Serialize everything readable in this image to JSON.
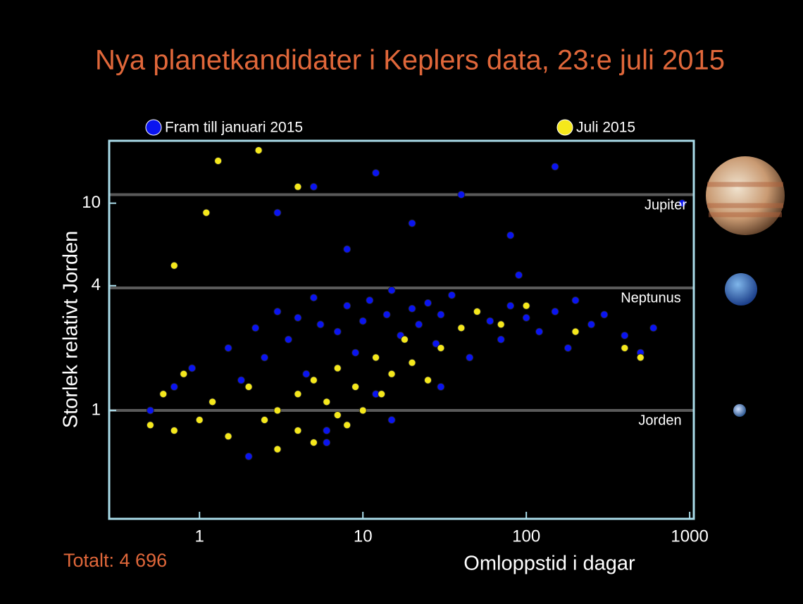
{
  "chart_data": {
    "type": "scatter",
    "title": "Nya planetkandidater i Keplers data, 23:e juli 2015",
    "x_label": "Omloppstid i dagar",
    "y_label": "Storlek relativt Jorden",
    "annotation": "Totalt: 4 696",
    "xscale": "log",
    "yscale": "log",
    "xlim": [
      0.28,
      1060
    ],
    "ylim": [
      0.3,
      20
    ],
    "xticks": [
      1,
      10,
      100,
      1000
    ],
    "yticks": [
      1,
      4,
      10
    ],
    "reference_lines": [
      {
        "label": "Jupiter",
        "value": 11
      },
      {
        "label": "Neptunus",
        "value": 3.9
      },
      {
        "label": "Jorden",
        "value": 1
      }
    ],
    "series": [
      {
        "name": "Fram till januari 2015",
        "color": "#0a14f0",
        "x": [
          0.5,
          0.7,
          0.9,
          1.2,
          1.5,
          1.8,
          2.2,
          2.5,
          3,
          3.5,
          4,
          4.5,
          5,
          5.5,
          6,
          7,
          8,
          9,
          10,
          11,
          12,
          14,
          15,
          17,
          20,
          22,
          25,
          28,
          30,
          35,
          40,
          45,
          50,
          60,
          70,
          80,
          90,
          100,
          120,
          150,
          180,
          200,
          250,
          300,
          400,
          500,
          600,
          3,
          5,
          8,
          12,
          20,
          40,
          80,
          2,
          6,
          15,
          30,
          150,
          900
        ],
        "values": [
          1.0,
          1.3,
          1.6,
          1.1,
          2.0,
          1.4,
          2.5,
          1.8,
          3.0,
          2.2,
          2.8,
          1.5,
          3.5,
          2.6,
          0.8,
          2.4,
          3.2,
          1.9,
          2.7,
          3.4,
          1.2,
          2.9,
          3.8,
          2.3,
          3.1,
          2.6,
          3.3,
          2.1,
          2.9,
          3.6,
          2.5,
          1.8,
          3.0,
          2.7,
          2.2,
          3.2,
          4.5,
          2.8,
          2.4,
          3.0,
          2.0,
          3.4,
          2.6,
          2.9,
          2.3,
          1.9,
          2.5,
          9,
          12,
          6,
          14,
          8,
          11,
          7,
          0.6,
          0.7,
          0.9,
          1.3,
          15,
          10
        ]
      },
      {
        "name": "Juli 2015",
        "color": "#f5e81c",
        "x": [
          0.5,
          0.6,
          0.7,
          0.8,
          1.0,
          1.2,
          1.5,
          2,
          2.5,
          3,
          3,
          4,
          4,
          5,
          5,
          6,
          7,
          7,
          8,
          9,
          10,
          12,
          13,
          15,
          18,
          20,
          25,
          30,
          40,
          50,
          70,
          100,
          200,
          400,
          500,
          1.3,
          2.3,
          4,
          0.7,
          1.1
        ],
        "values": [
          0.85,
          1.2,
          0.8,
          1.5,
          0.9,
          1.1,
          0.75,
          1.3,
          0.9,
          1.0,
          0.65,
          1.2,
          0.8,
          1.4,
          0.7,
          1.1,
          0.95,
          1.6,
          0.85,
          1.3,
          1.0,
          1.8,
          1.2,
          1.5,
          2.2,
          1.7,
          1.4,
          2.0,
          2.5,
          3.0,
          2.6,
          3.2,
          2.4,
          2.0,
          1.8,
          16,
          18,
          12,
          5,
          9
        ]
      }
    ]
  }
}
